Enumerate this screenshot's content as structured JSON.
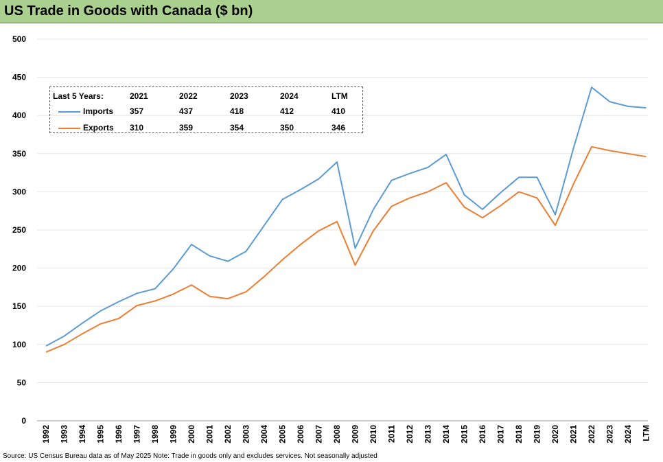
{
  "title": "US Trade in Goods with Canada ($ bn)",
  "source": "Source: US Census Bureau data as of May 2025 Note: Trade in goods only and excludes services. Not seasonally adjusted",
  "colors": {
    "title_bg": "#a9d08e",
    "imports": "#5b9bd5",
    "exports": "#ed7d31",
    "grid": "#e6e6e6"
  },
  "legend_table": {
    "header_label": "Last 5 Years:",
    "columns": [
      "2021",
      "2022",
      "2023",
      "2024",
      "LTM"
    ],
    "rows": [
      {
        "name": "Imports",
        "values": [
          "357",
          "437",
          "418",
          "412",
          "410"
        ]
      },
      {
        "name": "Exports",
        "values": [
          "310",
          "359",
          "354",
          "350",
          "346"
        ]
      }
    ]
  },
  "chart_data": {
    "type": "line",
    "categories": [
      "1992",
      "1993",
      "1994",
      "1995",
      "1996",
      "1997",
      "1998",
      "1999",
      "2000",
      "2001",
      "2002",
      "2003",
      "2004",
      "2005",
      "2006",
      "2007",
      "2008",
      "2009",
      "2010",
      "2011",
      "2012",
      "2013",
      "2014",
      "2015",
      "2016",
      "2017",
      "2018",
      "2019",
      "2020",
      "2021",
      "2022",
      "2023",
      "2024",
      "LTM"
    ],
    "ylim": [
      0,
      500
    ],
    "yticks": [
      0,
      50,
      100,
      150,
      200,
      250,
      300,
      350,
      400,
      450,
      500
    ],
    "grid": true,
    "legend_position": "top-left",
    "series": [
      {
        "name": "Imports",
        "color": "#5b9bd5",
        "values": [
          98,
          111,
          128,
          144,
          156,
          167,
          173,
          199,
          231,
          216,
          209,
          222,
          256,
          290,
          303,
          317,
          339,
          226,
          277,
          315,
          324,
          332,
          349,
          296,
          277,
          299,
          319,
          319,
          270,
          357,
          437,
          418,
          412,
          410
        ]
      },
      {
        "name": "Exports",
        "color": "#ed7d31",
        "values": [
          90,
          100,
          114,
          127,
          134,
          151,
          157,
          166,
          178,
          163,
          160,
          169,
          189,
          211,
          231,
          249,
          261,
          204,
          249,
          281,
          292,
          300,
          312,
          280,
          266,
          282,
          300,
          292,
          256,
          310,
          359,
          354,
          350,
          346
        ]
      }
    ]
  }
}
